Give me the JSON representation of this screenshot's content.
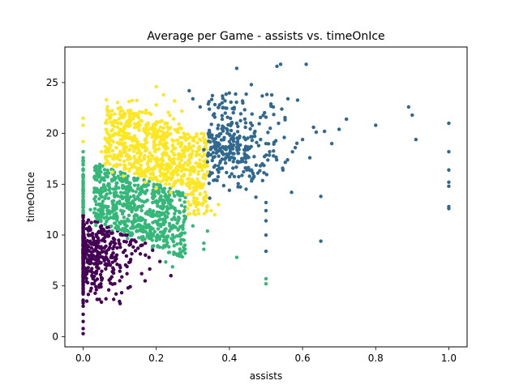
{
  "chart_data": {
    "type": "scatter",
    "title": "Average per Game - assists vs. timeOnIce",
    "xlabel": "assists",
    "ylabel": "timeOnIce",
    "xlim": [
      -0.05,
      1.05
    ],
    "ylim": [
      -1.0,
      28.5
    ],
    "xticks": [
      0.0,
      0.2,
      0.4,
      0.6,
      0.8,
      1.0
    ],
    "xtick_labels": [
      "0.0",
      "0.2",
      "0.4",
      "0.6",
      "0.8",
      "1.0"
    ],
    "yticks": [
      0,
      5,
      10,
      15,
      20,
      25
    ],
    "ytick_labels": [
      "0",
      "5",
      "10",
      "15",
      "20",
      "25"
    ],
    "grid": false,
    "legend": "none",
    "series": [
      {
        "color": "#440154",
        "points": [
          [
            0.0,
            0.3
          ],
          [
            0.0,
            0.8
          ],
          [
            0.0,
            1.5
          ],
          [
            0.0,
            2.2
          ],
          [
            0.0,
            3.0
          ],
          [
            0.0,
            3.6
          ],
          [
            0.0,
            4.2
          ],
          [
            0.0,
            4.8
          ],
          [
            0.0,
            5.4
          ],
          [
            0.0,
            6.0
          ],
          [
            0.0,
            6.6
          ],
          [
            0.0,
            7.2
          ],
          [
            0.0,
            7.8
          ],
          [
            0.0,
            8.4
          ],
          [
            0.0,
            9.0
          ],
          [
            0.0,
            9.6
          ],
          [
            0.0,
            10.2
          ],
          [
            0.0,
            10.8
          ],
          [
            0.0,
            11.4
          ],
          [
            0.0,
            11.9
          ],
          [
            0.01,
            3.5
          ],
          [
            0.01,
            6.2
          ],
          [
            0.01,
            8.8
          ],
          [
            0.02,
            4.5
          ],
          [
            0.02,
            7.5
          ],
          [
            0.02,
            10.5
          ],
          [
            0.03,
            5.2
          ],
          [
            0.03,
            9.4
          ],
          [
            0.04,
            6.8
          ],
          [
            0.04,
            8.1
          ],
          [
            0.05,
            5.8
          ],
          [
            0.05,
            10.9
          ],
          [
            0.06,
            7.1
          ],
          [
            0.06,
            9.8
          ],
          [
            0.07,
            4.6
          ],
          [
            0.07,
            8.6
          ],
          [
            0.08,
            6.4
          ],
          [
            0.08,
            10.2
          ],
          [
            0.09,
            7.9
          ],
          [
            0.1,
            5.5
          ],
          [
            0.1,
            9.1
          ],
          [
            0.11,
            8.3
          ],
          [
            0.12,
            6.9
          ],
          [
            0.12,
            10.0
          ],
          [
            0.13,
            7.6
          ],
          [
            0.14,
            9.5
          ],
          [
            0.15,
            8.7
          ],
          [
            0.16,
            6.2
          ],
          [
            0.17,
            9.2
          ],
          [
            0.18,
            7.8
          ],
          [
            0.19,
            8.5
          ],
          [
            0.24,
            6.0
          ],
          [
            0.21,
            7.4
          ],
          [
            0.09,
            4.2
          ],
          [
            0.05,
            3.4
          ]
        ]
      },
      {
        "color": "#35b779",
        "points": [
          [
            0.0,
            12.2
          ],
          [
            0.0,
            12.8
          ],
          [
            0.0,
            13.4
          ],
          [
            0.0,
            14.0
          ],
          [
            0.0,
            14.6
          ],
          [
            0.0,
            15.2
          ],
          [
            0.0,
            15.8
          ],
          [
            0.0,
            16.4
          ],
          [
            0.0,
            17.0
          ],
          [
            0.0,
            17.6
          ],
          [
            0.0,
            18.2
          ],
          [
            0.02,
            12.5
          ],
          [
            0.03,
            14.2
          ],
          [
            0.04,
            15.8
          ],
          [
            0.05,
            11.8
          ],
          [
            0.06,
            13.6
          ],
          [
            0.07,
            16.1
          ],
          [
            0.08,
            12.3
          ],
          [
            0.09,
            14.8
          ],
          [
            0.1,
            11.2
          ],
          [
            0.1,
            13.1
          ],
          [
            0.11,
            15.4
          ],
          [
            0.12,
            10.9
          ],
          [
            0.12,
            12.7
          ],
          [
            0.13,
            14.5
          ],
          [
            0.14,
            11.6
          ],
          [
            0.15,
            13.8
          ],
          [
            0.16,
            10.4
          ],
          [
            0.16,
            12.4
          ],
          [
            0.17,
            14.1
          ],
          [
            0.18,
            11.0
          ],
          [
            0.19,
            13.2
          ],
          [
            0.2,
            9.8
          ],
          [
            0.2,
            12.0
          ],
          [
            0.21,
            13.6
          ],
          [
            0.22,
            11.3
          ],
          [
            0.23,
            12.6
          ],
          [
            0.24,
            10.6
          ],
          [
            0.25,
            12.1
          ],
          [
            0.26,
            11.4
          ],
          [
            0.27,
            10.2
          ],
          [
            0.28,
            11.8
          ],
          [
            0.3,
            10.9
          ],
          [
            0.33,
            9.2
          ],
          [
            0.33,
            8.6
          ],
          [
            0.34,
            10.4
          ],
          [
            0.5,
            5.2
          ],
          [
            0.5,
            5.7
          ],
          [
            0.42,
            7.8
          ],
          [
            0.19,
            8.9
          ],
          [
            0.18,
            9.7
          ]
        ]
      },
      {
        "color": "#fde725",
        "points": [
          [
            0.0,
            20.8
          ],
          [
            0.0,
            21.5
          ],
          [
            0.0,
            19.2
          ],
          [
            0.05,
            18.2
          ],
          [
            0.06,
            17.0
          ],
          [
            0.07,
            19.5
          ],
          [
            0.08,
            16.2
          ],
          [
            0.09,
            18.6
          ],
          [
            0.1,
            20.4
          ],
          [
            0.11,
            15.8
          ],
          [
            0.12,
            17.9
          ],
          [
            0.13,
            19.6
          ],
          [
            0.14,
            16.7
          ],
          [
            0.15,
            18.8
          ],
          [
            0.16,
            21.2
          ],
          [
            0.17,
            15.2
          ],
          [
            0.18,
            17.4
          ],
          [
            0.19,
            19.9
          ],
          [
            0.2,
            22.8
          ],
          [
            0.2,
            14.6
          ],
          [
            0.21,
            16.8
          ],
          [
            0.22,
            18.7
          ],
          [
            0.23,
            21.0
          ],
          [
            0.24,
            14.2
          ],
          [
            0.24,
            16.0
          ],
          [
            0.25,
            17.9
          ],
          [
            0.26,
            20.1
          ],
          [
            0.27,
            15.4
          ],
          [
            0.27,
            22.2
          ],
          [
            0.28,
            17.1
          ],
          [
            0.29,
            19.0
          ],
          [
            0.3,
            14.0
          ],
          [
            0.3,
            16.4
          ],
          [
            0.31,
            18.2
          ],
          [
            0.32,
            15.1
          ],
          [
            0.33,
            13.6
          ],
          [
            0.34,
            16.2
          ],
          [
            0.35,
            12.4
          ],
          [
            0.36,
            12.0
          ],
          [
            0.37,
            13.0
          ],
          [
            0.2,
            24.6
          ],
          [
            0.22,
            23.8
          ],
          [
            0.25,
            23.2
          ],
          [
            0.18,
            22.0
          ],
          [
            0.14,
            21.8
          ]
        ]
      },
      {
        "color": "#31688e",
        "points": [
          [
            0.29,
            24.2
          ],
          [
            0.3,
            23.4
          ],
          [
            0.32,
            22.6
          ],
          [
            0.33,
            18.4
          ],
          [
            0.34,
            17.2
          ],
          [
            0.35,
            19.8
          ],
          [
            0.36,
            21.6
          ],
          [
            0.37,
            16.8
          ],
          [
            0.38,
            18.2
          ],
          [
            0.38,
            23.0
          ],
          [
            0.39,
            17.6
          ],
          [
            0.4,
            19.2
          ],
          [
            0.4,
            14.4
          ],
          [
            0.41,
            18.0
          ],
          [
            0.42,
            26.4
          ],
          [
            0.42,
            21.0
          ],
          [
            0.43,
            17.2
          ],
          [
            0.44,
            19.6
          ],
          [
            0.45,
            18.4
          ],
          [
            0.46,
            24.8
          ],
          [
            0.46,
            16.4
          ],
          [
            0.47,
            20.2
          ],
          [
            0.48,
            18.8
          ],
          [
            0.49,
            17.0
          ],
          [
            0.5,
            21.6
          ],
          [
            0.5,
            19.0
          ],
          [
            0.5,
            13.2
          ],
          [
            0.5,
            12.4
          ],
          [
            0.5,
            11.4
          ],
          [
            0.5,
            10.0
          ],
          [
            0.5,
            8.4
          ],
          [
            0.51,
            18.2
          ],
          [
            0.52,
            22.6
          ],
          [
            0.53,
            26.6
          ],
          [
            0.54,
            26.8
          ],
          [
            0.55,
            19.6
          ],
          [
            0.56,
            23.4
          ],
          [
            0.57,
            14.2
          ],
          [
            0.58,
            18.6
          ],
          [
            0.6,
            19.4
          ],
          [
            0.61,
            26.8
          ],
          [
            0.62,
            17.6
          ],
          [
            0.63,
            20.6
          ],
          [
            0.65,
            13.8
          ],
          [
            0.65,
            9.4
          ],
          [
            0.66,
            20.2
          ],
          [
            0.68,
            19.0
          ],
          [
            0.7,
            20.4
          ],
          [
            0.72,
            21.4
          ],
          [
            0.8,
            20.8
          ],
          [
            0.89,
            22.6
          ],
          [
            0.9,
            21.8
          ],
          [
            0.91,
            19.4
          ],
          [
            1.0,
            21.0
          ],
          [
            1.0,
            18.2
          ],
          [
            1.0,
            16.4
          ],
          [
            1.0,
            15.2
          ],
          [
            1.0,
            14.8
          ],
          [
            1.0,
            12.8
          ],
          [
            1.0,
            12.6
          ]
        ]
      }
    ],
    "generated_clusters": [
      {
        "color": "#440154",
        "count": 420,
        "cx": [
          0.0,
          0.2
        ],
        "cy": [
          3.5,
          11.0
        ],
        "boundary": "lower"
      },
      {
        "color": "#35b779",
        "count": 700,
        "cx": [
          0.02,
          0.3
        ],
        "cy": [
          9.0,
          17.5
        ],
        "boundary": "mid"
      },
      {
        "color": "#fde725",
        "count": 750,
        "cx": [
          0.05,
          0.34
        ],
        "cy": [
          13.0,
          24.0
        ],
        "boundary": "upper"
      },
      {
        "color": "#31688e",
        "count": 300,
        "cx": [
          0.33,
          0.56
        ],
        "cy": [
          15.5,
          21.0
        ],
        "boundary": "right"
      }
    ]
  }
}
